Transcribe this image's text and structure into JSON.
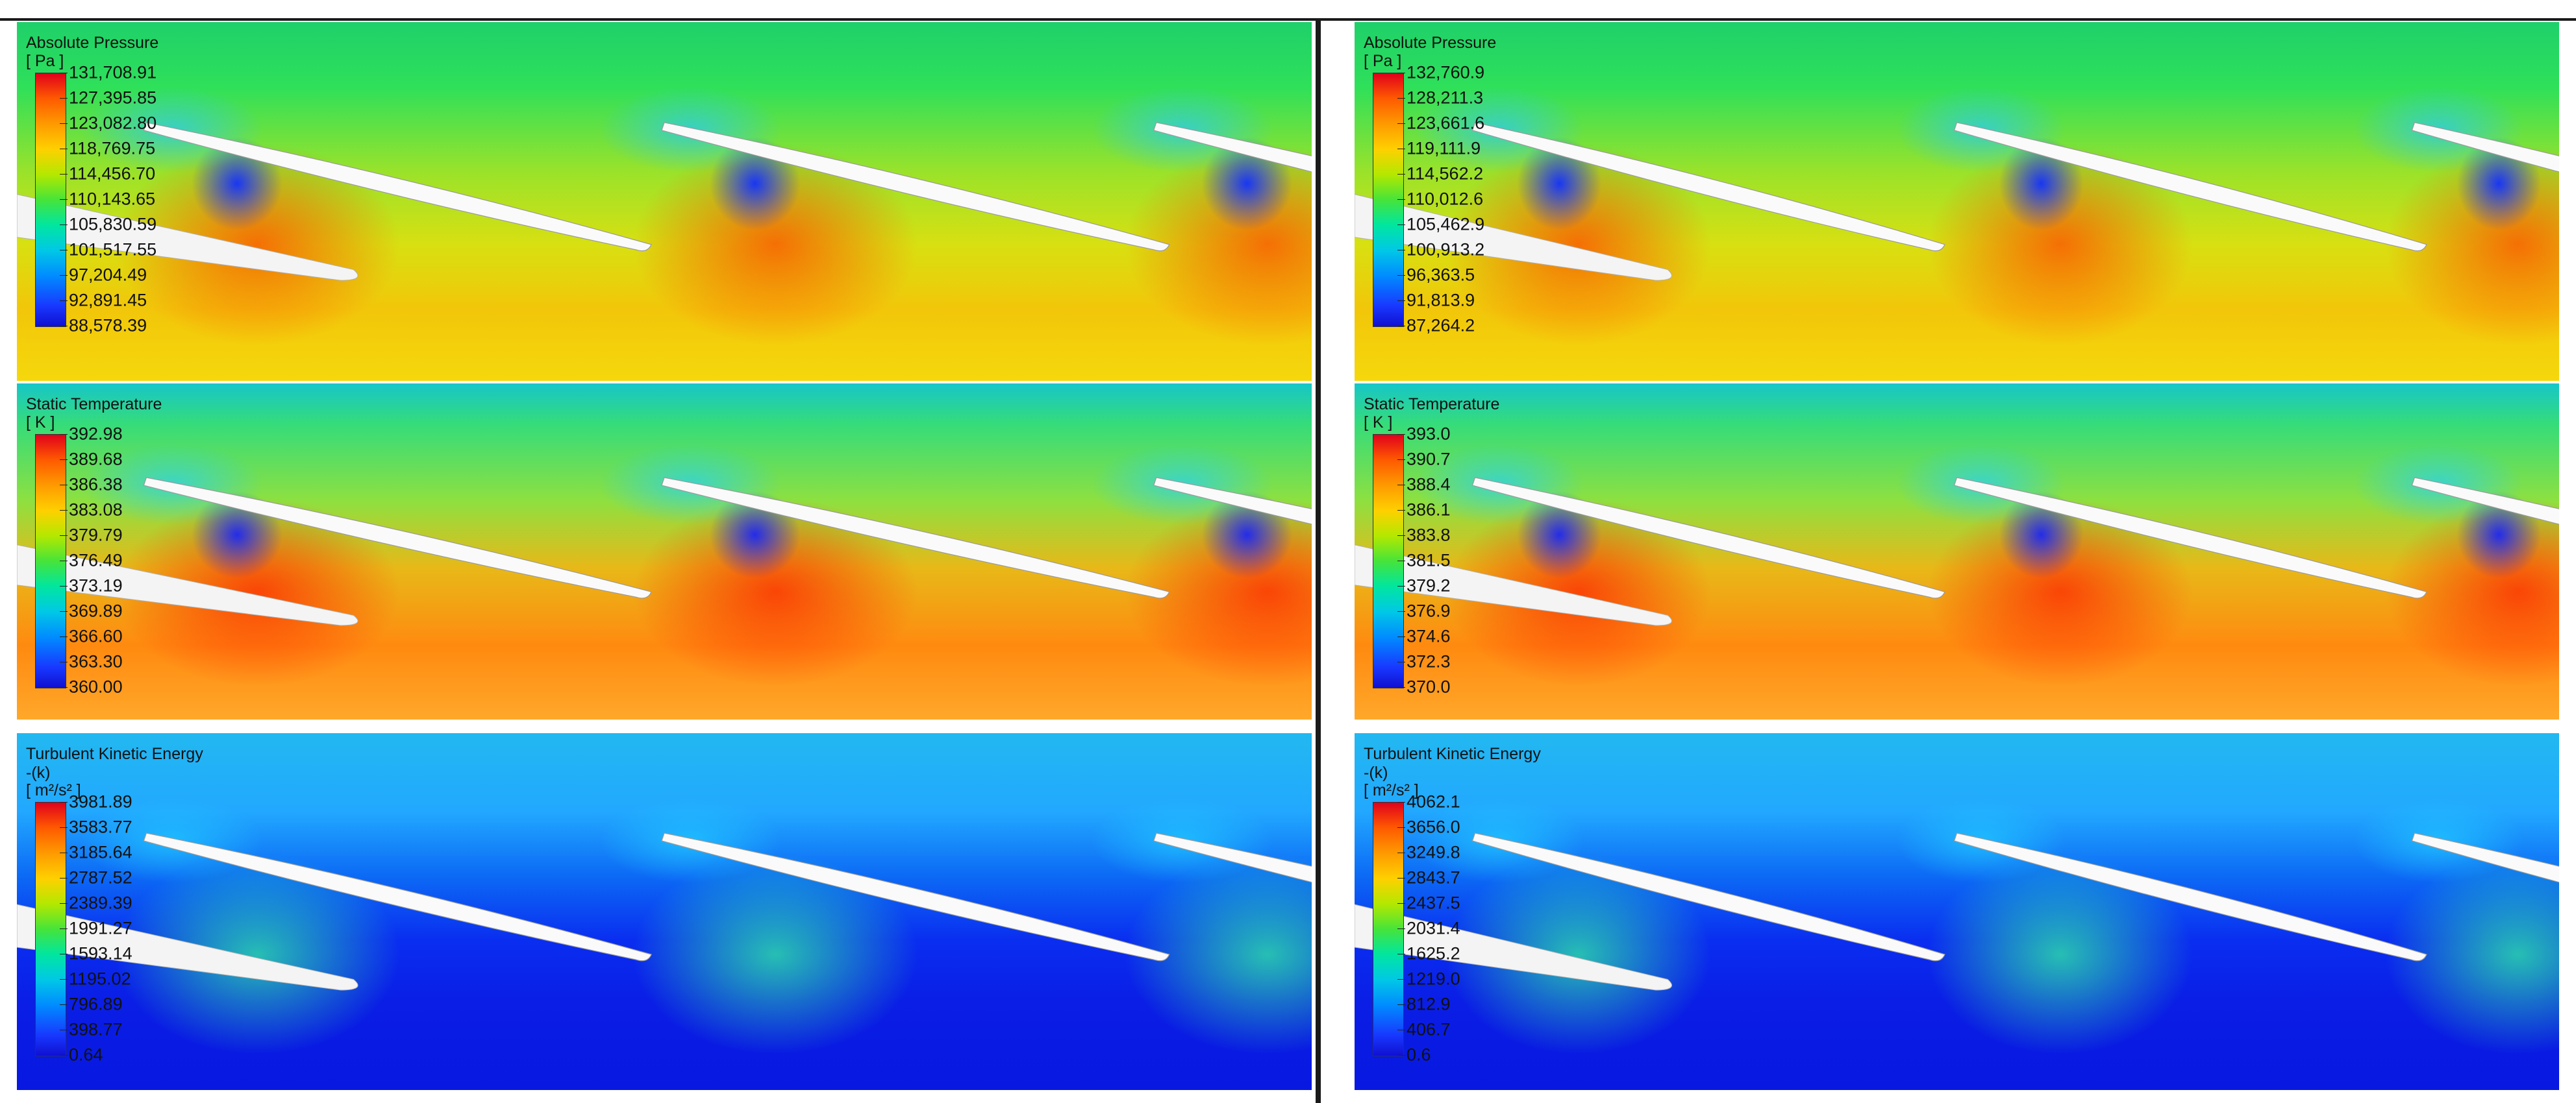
{
  "panels": [
    {
      "id": "pressure-left",
      "title": "Absolute Pressure",
      "subtitle": "",
      "unit": "[ Pa ]",
      "labels": [
        "131,708.91",
        "127,395.85",
        "123,082.80",
        "118,769.75",
        "114,456.70",
        "110,143.65",
        "105,830.59",
        "101,517.55",
        "97,204.49",
        "92,891.45",
        "88,578.39"
      ]
    },
    {
      "id": "pressure-right",
      "title": "Absolute Pressure",
      "subtitle": "",
      "unit": "[ Pa ]",
      "labels": [
        "132,760.9",
        "128,211.3",
        "123,661.6",
        "119,111.9",
        "114,562.2",
        "110,012.6",
        "105,462.9",
        "100,913.2",
        "96,363.5",
        "91,813.9",
        "87,264.2"
      ]
    },
    {
      "id": "temperature-left",
      "title": "Static Temperature",
      "subtitle": "",
      "unit": "[ K ]",
      "labels": [
        "392.98",
        "389.68",
        "386.38",
        "383.08",
        "379.79",
        "376.49",
        "373.19",
        "369.89",
        "366.60",
        "363.30",
        "360.00"
      ]
    },
    {
      "id": "temperature-right",
      "title": "Static Temperature",
      "subtitle": "",
      "unit": "[ K ]",
      "labels": [
        "393.0",
        "390.7",
        "388.4",
        "386.1",
        "383.8",
        "381.5",
        "379.2",
        "376.9",
        "374.6",
        "372.3",
        "370.0"
      ]
    },
    {
      "id": "tke-left",
      "title": "Turbulent Kinetic Energy",
      "subtitle": "-(k)",
      "unit": "[ m²/s² ]",
      "labels": [
        "3981.89",
        "3583.77",
        "3185.64",
        "2787.52",
        "2389.39",
        "1991.27",
        "1593.14",
        "1195.02",
        "796.89",
        "398.77",
        "0.64"
      ]
    },
    {
      "id": "tke-right",
      "title": "Turbulent Kinetic Energy",
      "subtitle": "-(k)",
      "unit": "[ m²/s² ]",
      "labels": [
        "4062.1",
        "3656.0",
        "3249.8",
        "2843.7",
        "2437.5",
        "2031.4",
        "1625.2",
        "1219.0",
        "812.9",
        "406.7",
        "0.6"
      ]
    }
  ]
}
